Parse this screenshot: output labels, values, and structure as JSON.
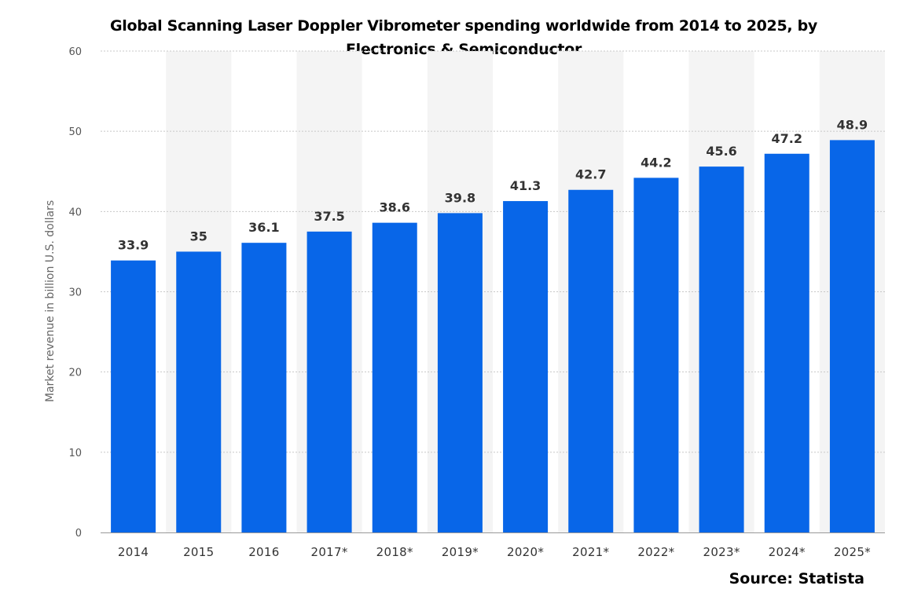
{
  "chart_data": {
    "type": "bar",
    "title": "Global Scanning Laser Doppler Vibrometer spending worldwide from 2014 to 2025, by\nElectronics & Semiconductor",
    "xlabel": "",
    "ylabel": "Market revenue in billion U.S. dollars",
    "categories": [
      "2014",
      "2015",
      "2016",
      "2017*",
      "2018*",
      "2019*",
      "2020*",
      "2021*",
      "2022*",
      "2023*",
      "2024*",
      "2025*"
    ],
    "values": [
      33.9,
      35,
      36.1,
      37.5,
      38.6,
      39.8,
      41.3,
      42.7,
      44.2,
      45.6,
      47.2,
      48.9
    ],
    "value_labels": [
      "33.9",
      "35",
      "36.1",
      "37.5",
      "38.6",
      "39.8",
      "41.3",
      "42.7",
      "44.2",
      "45.6",
      "47.2",
      "48.9"
    ],
    "ylim": [
      0,
      60
    ],
    "yticks": [
      "0",
      "10",
      "20",
      "30",
      "40",
      "50",
      "60"
    ],
    "grid": true,
    "legend": "none",
    "bar_color": "#0866e8",
    "band_color": "#f4f4f4",
    "source": "Source: Statista"
  }
}
